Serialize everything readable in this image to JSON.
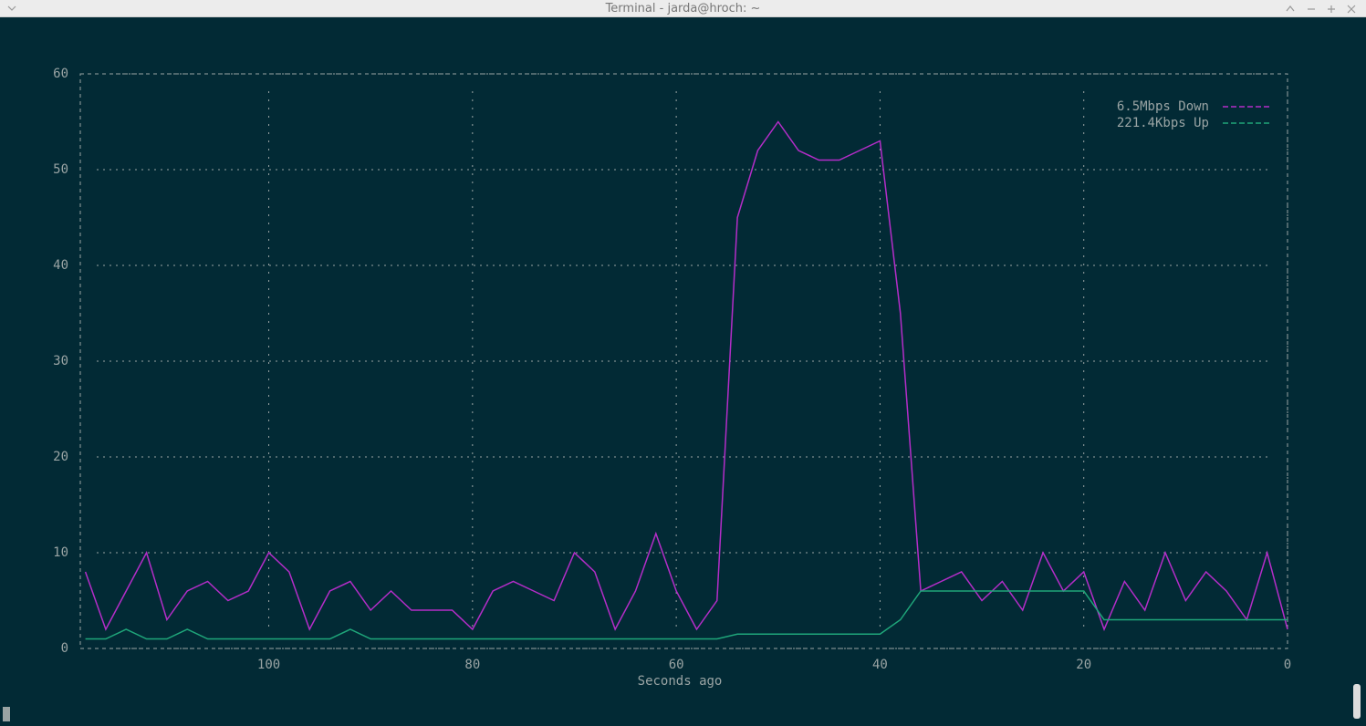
{
  "window": {
    "title": "Terminal - jarda@hroch: ~"
  },
  "chart_data": {
    "type": "line",
    "x_label": "Seconds ago",
    "x": [
      118,
      116,
      114,
      112,
      110,
      108,
      106,
      104,
      102,
      100,
      98,
      96,
      94,
      92,
      90,
      88,
      86,
      84,
      82,
      80,
      78,
      76,
      74,
      72,
      70,
      68,
      66,
      64,
      62,
      60,
      58,
      56,
      54,
      52,
      50,
      48,
      46,
      44,
      42,
      40,
      38,
      36,
      34,
      32,
      30,
      28,
      26,
      24,
      22,
      20,
      18,
      16,
      14,
      12,
      10,
      8,
      6,
      4,
      2,
      0
    ],
    "series": [
      {
        "name": "6.5Mbps Down",
        "color": "#b42dc8",
        "values": [
          8,
          2,
          6,
          10,
          3,
          6,
          7,
          5,
          6,
          10,
          8,
          2,
          6,
          7,
          4,
          6,
          4,
          4,
          4,
          2,
          6,
          7,
          6,
          5,
          10,
          8,
          2,
          6,
          12,
          6,
          2,
          5,
          45,
          52,
          55,
          52,
          51,
          51,
          52,
          53,
          35,
          6,
          7,
          8,
          5,
          7,
          4,
          10,
          6,
          8,
          2,
          7,
          4,
          10,
          5,
          8,
          6,
          3,
          10,
          2
        ]
      },
      {
        "name": "221.4Kbps Up",
        "color": "#1fa67a",
        "values": [
          1,
          1,
          2,
          1,
          1,
          2,
          1,
          1,
          1,
          1,
          1,
          1,
          1,
          2,
          1,
          1,
          1,
          1,
          1,
          1,
          1,
          1,
          1,
          1,
          1,
          1,
          1,
          1,
          1,
          1,
          1,
          1,
          1.5,
          1.5,
          1.5,
          1.5,
          1.5,
          1.5,
          1.5,
          1.5,
          3,
          6,
          6,
          6,
          6,
          6,
          6,
          6,
          6,
          6,
          3,
          3,
          3,
          3,
          3,
          3,
          3,
          3,
          3,
          3
        ]
      }
    ],
    "xlim": [
      118.5,
      0
    ],
    "xticks": [
      100,
      80,
      60,
      40,
      20,
      0
    ],
    "ylim": [
      0,
      60
    ],
    "yticks": [
      0,
      10,
      20,
      30,
      40,
      50,
      60
    ],
    "grid": true,
    "legend": "top-right"
  }
}
